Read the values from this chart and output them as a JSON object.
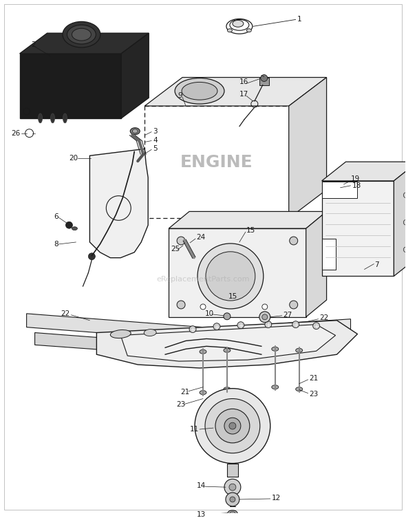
{
  "bg_color": "#ffffff",
  "line_color": "#1a1a1a",
  "watermark": "eReplacementParts.com",
  "font_size_labels": 7.5,
  "font_size_engine": 18,
  "engine_text": "ENGINE",
  "figw": 5.9,
  "figh": 7.53,
  "dpi": 100
}
